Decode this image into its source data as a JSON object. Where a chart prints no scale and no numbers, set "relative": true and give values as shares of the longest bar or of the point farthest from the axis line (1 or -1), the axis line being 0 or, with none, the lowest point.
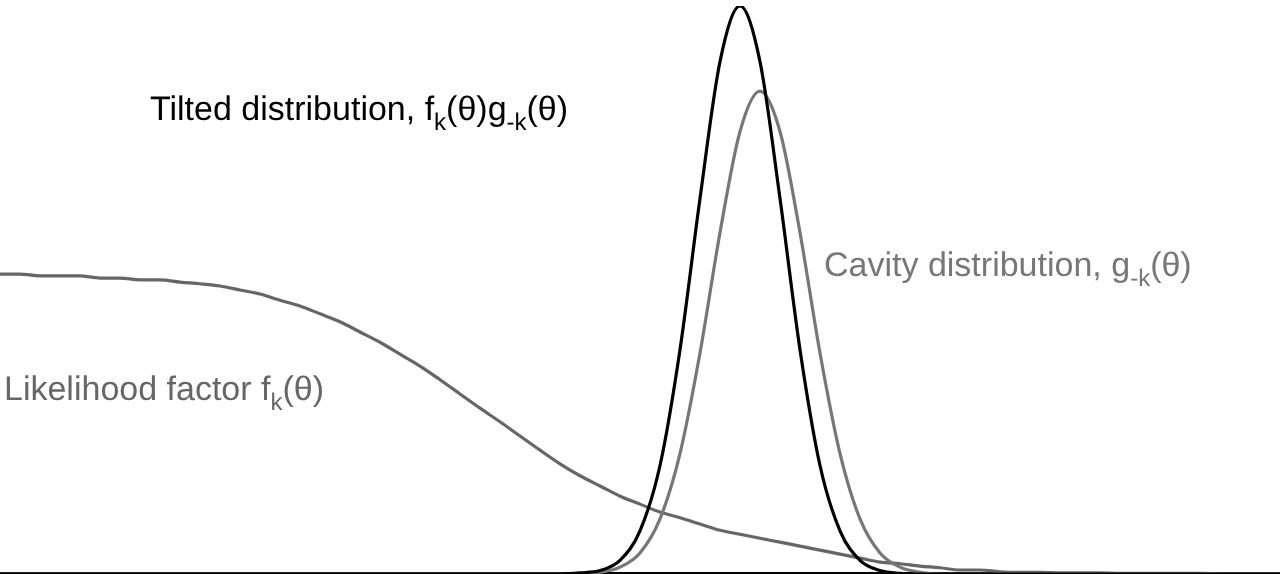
{
  "chart_data": {
    "type": "line",
    "relative": true,
    "legend": false,
    "grid": false,
    "marker": "none",
    "line_style": "solid",
    "categories": [
      null,
      null,
      null,
      null,
      null,
      null,
      null,
      null,
      null,
      null,
      null,
      null,
      null,
      null,
      null,
      null,
      null,
      null,
      null,
      null,
      null,
      null,
      null,
      null,
      null,
      null,
      null,
      null,
      null,
      null,
      null,
      null,
      null,
      null,
      null,
      null,
      null,
      null,
      null,
      null,
      null,
      null,
      null,
      null,
      null,
      null,
      null,
      null,
      null,
      null,
      null,
      null,
      null,
      null,
      null,
      null,
      null,
      null,
      null,
      null,
      null,
      null,
      null,
      null,
      null
    ],
    "series": [
      {
        "name": "Tilted distribution, f$_{k}$(θ)g$_{-k}$(θ)",
        "color": "#000000",
        "values": [
          0,
          0,
          0,
          0,
          0,
          0,
          0,
          0,
          0,
          0,
          0,
          0,
          0,
          0,
          0,
          0,
          0,
          0,
          0,
          0,
          0,
          0,
          0,
          0,
          0,
          0,
          0,
          0,
          0,
          0.002,
          0.006,
          0.024,
          0.076,
          0.191,
          0.395,
          0.661,
          0.902,
          1,
          0.902,
          0.661,
          0.395,
          0.191,
          0.076,
          0.024,
          0.006,
          0.001,
          0,
          0,
          0,
          0,
          0,
          0,
          0,
          0,
          0,
          0,
          0,
          0,
          0,
          0,
          0,
          0,
          0,
          0,
          0
        ]
      },
      {
        "name": "Cavity distribution, g$_{-k}$(θ)",
        "color": "#777777",
        "values": [
          0,
          0,
          0,
          0,
          0,
          0,
          0,
          0,
          0,
          0,
          0,
          0,
          0,
          0,
          0,
          0,
          0,
          0,
          0,
          0,
          0,
          0,
          0,
          0,
          0,
          0,
          0,
          0,
          0,
          0,
          0.003,
          0.012,
          0.037,
          0.097,
          0.212,
          0.389,
          0.601,
          0.779,
          0.85,
          0.779,
          0.601,
          0.389,
          0.212,
          0.097,
          0.037,
          0.012,
          0.003,
          0,
          0,
          0,
          0,
          0,
          0,
          0,
          0,
          0,
          0,
          0,
          0,
          0,
          0,
          0,
          0,
          0,
          0
        ]
      },
      {
        "name": "Likelihood factor f$_{k}$(θ)",
        "color": "#666666",
        "values": [
          0.528,
          0.528,
          0.525,
          0.525,
          0.525,
          0.521,
          0.521,
          0.518,
          0.518,
          0.514,
          0.511,
          0.507,
          0.5,
          0.493,
          0.482,
          0.472,
          0.458,
          0.444,
          0.426,
          0.408,
          0.387,
          0.366,
          0.342,
          0.317,
          0.292,
          0.268,
          0.243,
          0.218,
          0.194,
          0.173,
          0.155,
          0.137,
          0.123,
          0.109,
          0.099,
          0.088,
          0.077,
          0.07,
          0.063,
          0.056,
          0.049,
          0.042,
          0.035,
          0.028,
          0.021,
          0.018,
          0.014,
          0.011,
          0.007,
          0.007,
          0.004,
          0.003,
          0.003,
          0.002,
          0.002,
          0.002,
          0.001,
          0.001,
          0.001,
          0.001,
          0.001,
          0,
          0,
          0,
          0
        ]
      }
    ]
  }
}
